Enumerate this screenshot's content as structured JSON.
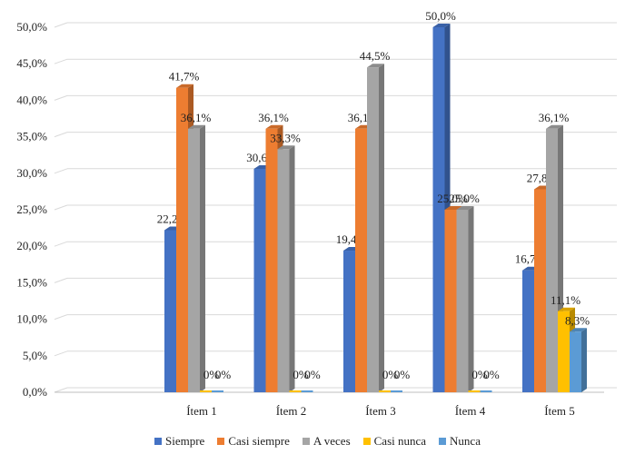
{
  "chart_data": {
    "type": "bar",
    "categories": [
      "Ítem 1",
      "Ítem 2",
      "Ítem 3",
      "Ítem 4",
      "Ítem 5"
    ],
    "series": [
      {
        "name": "Siempre",
        "color": "#4472C4",
        "values": [
          22.2,
          30.6,
          19.4,
          50.0,
          16.7
        ],
        "labels": [
          "22,2%",
          "30,6%",
          "19,4%",
          "50,0%",
          "16,7%"
        ]
      },
      {
        "name": "Casi siempre",
        "color": "#ED7D31",
        "values": [
          41.7,
          36.1,
          36.1,
          25.0,
          27.8
        ],
        "labels": [
          "41,7%",
          "36,1%",
          "36,1%",
          "25,0%",
          "27,8%"
        ]
      },
      {
        "name": "A veces",
        "color": "#A5A5A5",
        "values": [
          36.1,
          33.3,
          44.5,
          25.0,
          36.1
        ],
        "labels": [
          "36,1%",
          "33,3%",
          "44,5%",
          "25,0%",
          "36,1%"
        ]
      },
      {
        "name": "Casi nunca",
        "color": "#FFC000",
        "values": [
          0,
          0,
          0,
          0,
          11.1
        ],
        "labels": [
          "0%",
          "0%",
          "0%",
          "0%",
          "11,1%"
        ]
      },
      {
        "name": "Nunca",
        "color": "#5B9BD5",
        "values": [
          0,
          0,
          0,
          0,
          8.3
        ],
        "labels": [
          "0%",
          "0%",
          "0%",
          "0%",
          "8,3%"
        ]
      }
    ],
    "yticks": [
      "0,0%",
      "5,0%",
      "10,0%",
      "15,0%",
      "20,0%",
      "25,0%",
      "30,0%",
      "35,0%",
      "40,0%",
      "45,0%",
      "50,0%"
    ],
    "ylim": [
      0,
      50
    ],
    "grid": true,
    "legend": "bottom",
    "three_d": true
  }
}
